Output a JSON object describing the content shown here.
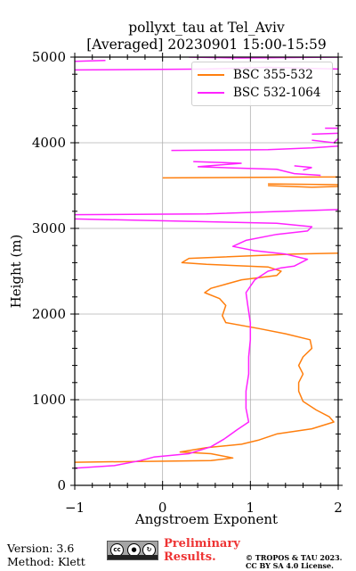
{
  "chart_data": {
    "type": "line",
    "title": "pollyxt_tau at Tel_Aviv",
    "subtitle": "[Averaged] 20230901 15:00-15:59",
    "xlabel": "Angstroem Exponent",
    "ylabel": "Height (m)",
    "xlim": [
      -1,
      2
    ],
    "ylim": [
      0,
      5000
    ],
    "x_ticks": [
      "−1",
      "0",
      "1",
      "2"
    ],
    "y_ticks": [
      "0",
      "1000",
      "2000",
      "3000",
      "4000",
      "5000"
    ],
    "grid": true,
    "legend_position": "top-right",
    "series": [
      {
        "name": "BSC 355-532",
        "color": "#ff7f0e",
        "points": [
          [
            -1.0,
            270
          ],
          [
            0.55,
            290
          ],
          [
            0.8,
            320
          ],
          [
            0.55,
            370
          ],
          [
            0.2,
            390
          ],
          [
            0.5,
            440
          ],
          [
            0.9,
            480
          ],
          [
            1.1,
            530
          ],
          [
            1.3,
            600
          ],
          [
            1.7,
            660
          ],
          [
            1.95,
            740
          ],
          [
            1.9,
            800
          ],
          [
            1.75,
            880
          ],
          [
            1.6,
            980
          ],
          [
            1.55,
            1100
          ],
          [
            1.55,
            1200
          ],
          [
            1.6,
            1300
          ],
          [
            1.55,
            1400
          ],
          [
            1.6,
            1500
          ],
          [
            1.7,
            1600
          ],
          [
            1.68,
            1700
          ],
          [
            1.4,
            1770
          ],
          [
            1.1,
            1830
          ],
          [
            0.72,
            1900
          ],
          [
            0.68,
            1980
          ],
          [
            0.72,
            2100
          ],
          [
            0.65,
            2180
          ],
          [
            0.48,
            2250
          ],
          [
            0.55,
            2300
          ],
          [
            0.9,
            2400
          ],
          [
            1.3,
            2450
          ],
          [
            1.35,
            2500
          ],
          [
            1.2,
            2550
          ],
          [
            0.5,
            2580
          ],
          [
            0.22,
            2600
          ],
          [
            0.3,
            2650
          ],
          [
            1.5,
            2700
          ],
          [
            2.0,
            2710
          ]
        ],
        "segments": [
          [
            [
              0.0,
              3590
            ],
            [
              1.8,
              3600
            ],
            [
              2.0,
              3600
            ]
          ],
          [
            [
              1.2,
              3500
            ],
            [
              1.7,
              3480
            ],
            [
              2.0,
              3490
            ]
          ],
          [
            [
              1.2,
              3520
            ],
            [
              2.0,
              3510
            ]
          ]
        ]
      },
      {
        "name": "BSC 532-1064",
        "color": "#ff22ff",
        "points": [
          [
            -1.0,
            200
          ],
          [
            -0.55,
            230
          ],
          [
            -0.25,
            290
          ],
          [
            -0.1,
            330
          ],
          [
            0.3,
            370
          ],
          [
            0.55,
            450
          ],
          [
            0.7,
            540
          ],
          [
            0.85,
            650
          ],
          [
            0.98,
            740
          ],
          [
            0.95,
            900
          ],
          [
            0.95,
            1100
          ],
          [
            0.98,
            1300
          ],
          [
            0.98,
            1500
          ],
          [
            1.0,
            1700
          ],
          [
            1.0,
            1900
          ],
          [
            0.97,
            2100
          ],
          [
            0.95,
            2250
          ],
          [
            1.05,
            2400
          ],
          [
            1.2,
            2500
          ],
          [
            1.35,
            2540
          ],
          [
            1.5,
            2560
          ],
          [
            1.65,
            2640
          ],
          [
            1.4,
            2700
          ],
          [
            1.05,
            2740
          ],
          [
            0.8,
            2790
          ],
          [
            0.95,
            2860
          ],
          [
            1.3,
            2930
          ],
          [
            1.65,
            2970
          ],
          [
            1.7,
            3020
          ],
          [
            1.3,
            3060
          ],
          [
            -1.0,
            3110
          ]
        ],
        "segments": [
          [
            [
              -1.0,
              3160
            ],
            [
              0.5,
              3170
            ],
            [
              2.0,
              3220
            ]
          ],
          [
            [
              1.8,
              3620
            ],
            [
              1.5,
              3640
            ],
            [
              1.3,
              3690
            ],
            [
              0.4,
              3720
            ],
            [
              0.9,
              3760
            ],
            [
              0.35,
              3780
            ]
          ],
          [
            [
              1.6,
              3680
            ],
            [
              1.7,
              3710
            ],
            [
              1.5,
              3730
            ]
          ],
          [
            [
              0.1,
              3910
            ],
            [
              1.2,
              3920
            ],
            [
              1.7,
              3940
            ],
            [
              2.0,
              3960
            ]
          ],
          [
            [
              1.7,
              4030
            ],
            [
              1.95,
              4000
            ],
            [
              2.0,
              4050
            ]
          ],
          [
            [
              1.7,
              4100
            ],
            [
              2.0,
              4110
            ]
          ],
          [
            [
              1.85,
              4170
            ],
            [
              2.0,
              4170
            ]
          ],
          [
            [
              -1.0,
              4850
            ],
            [
              0.5,
              4860
            ],
            [
              1.2,
              4880
            ],
            [
              2.0,
              4860
            ]
          ],
          [
            [
              -1.0,
              4950
            ],
            [
              -0.65,
              4960
            ]
          ],
          [
            [
              0.3,
              5000
            ],
            [
              0.9,
              4990
            ],
            [
              2.0,
              5000
            ]
          ]
        ]
      }
    ]
  },
  "footer": {
    "version": "Version: 3.6",
    "method": "Method: Klett",
    "preliminary_line1": "Preliminary",
    "preliminary_line2": "Results.",
    "copyright_line1": "© TROPOS & TAU 2023.",
    "copyright_line2": "CC BY SA 4.0 License."
  },
  "license_badge": {
    "icons": [
      "cc-icon",
      "by-icon",
      "sa-icon"
    ]
  }
}
